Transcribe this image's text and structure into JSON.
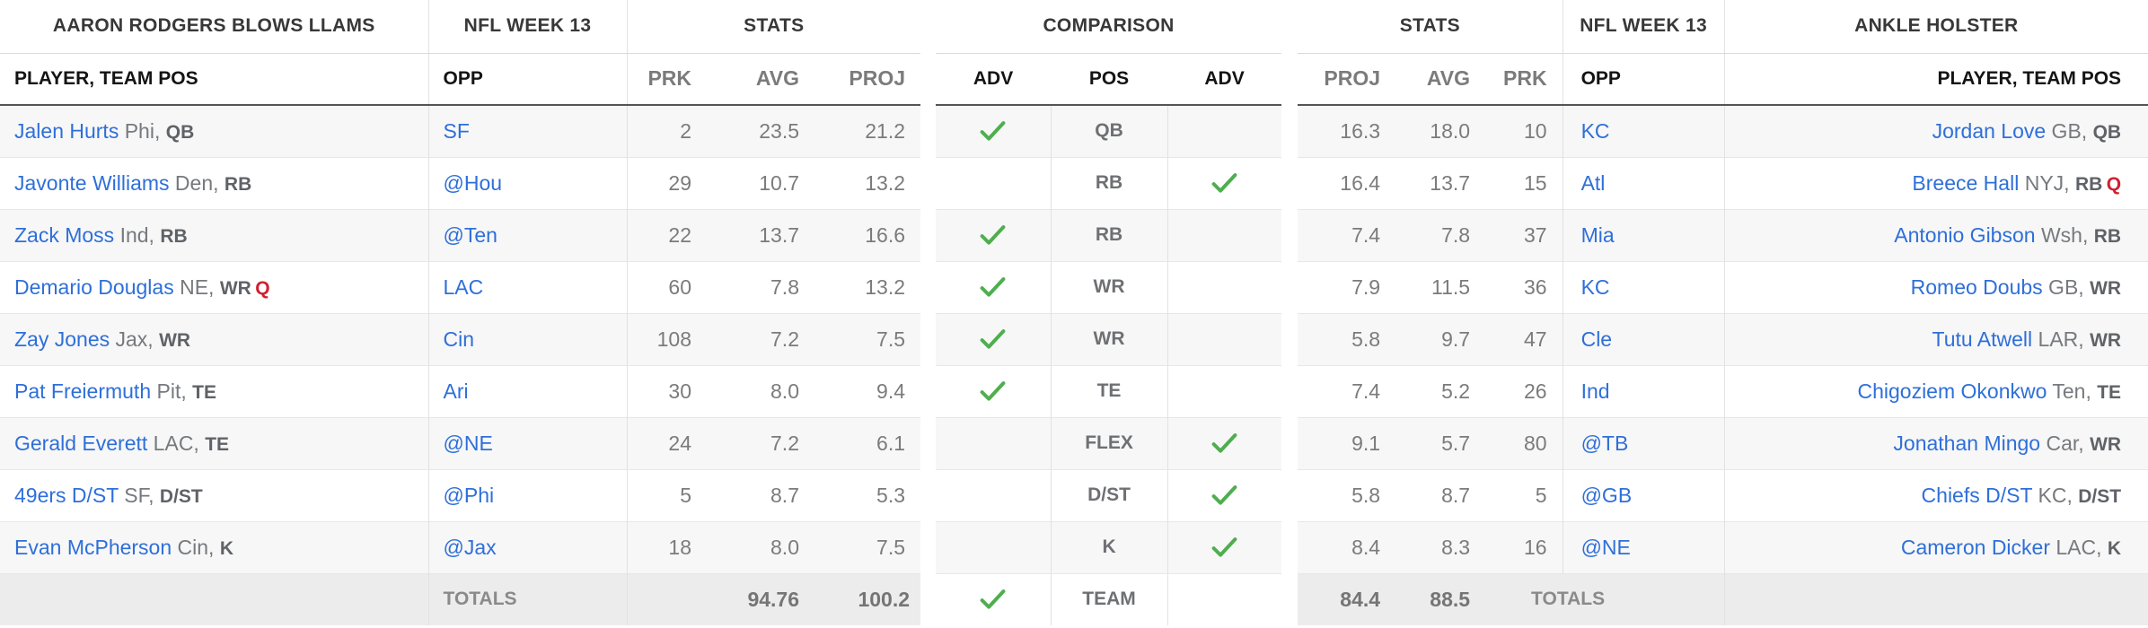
{
  "colors": {
    "link_blue": "#2e6fd9",
    "advantage_green": "#4fae4e",
    "status_red": "#d02030",
    "stripe": "#f7f7f7",
    "totals_bg": "#ececec"
  },
  "left_table": {
    "title": "AARON RODGERS BLOWS LLAMS",
    "week_header": "NFL WEEK 13",
    "stats_header": "STATS",
    "col_headers": {
      "player": "PLAYER, TEAM POS",
      "opp": "OPP",
      "prk": "PRK",
      "avg": "AVG",
      "proj": "PROJ"
    },
    "rows": [
      {
        "name": "Jalen Hurts",
        "team": "Phi",
        "pos": "QB",
        "status": "",
        "opp": "SF",
        "prk": "2",
        "avg": "23.5",
        "proj": "21.2"
      },
      {
        "name": "Javonte Williams",
        "team": "Den",
        "pos": "RB",
        "status": "",
        "opp": "@Hou",
        "prk": "29",
        "avg": "10.7",
        "proj": "13.2"
      },
      {
        "name": "Zack Moss",
        "team": "Ind",
        "pos": "RB",
        "status": "",
        "opp": "@Ten",
        "prk": "22",
        "avg": "13.7",
        "proj": "16.6"
      },
      {
        "name": "Demario Douglas",
        "team": "NE",
        "pos": "WR",
        "status": "Q",
        "opp": "LAC",
        "prk": "60",
        "avg": "7.8",
        "proj": "13.2"
      },
      {
        "name": "Zay Jones",
        "team": "Jax",
        "pos": "WR",
        "status": "",
        "opp": "Cin",
        "prk": "108",
        "avg": "7.2",
        "proj": "7.5"
      },
      {
        "name": "Pat Freiermuth",
        "team": "Pit",
        "pos": "TE",
        "status": "",
        "opp": "Ari",
        "prk": "30",
        "avg": "8.0",
        "proj": "9.4"
      },
      {
        "name": "Gerald Everett",
        "team": "LAC",
        "pos": "TE",
        "status": "",
        "opp": "@NE",
        "prk": "24",
        "avg": "7.2",
        "proj": "6.1"
      },
      {
        "name": "49ers D/ST",
        "team": "SF",
        "pos": "D/ST",
        "status": "",
        "opp": "@Phi",
        "prk": "5",
        "avg": "8.7",
        "proj": "5.3"
      },
      {
        "name": "Evan McPherson",
        "team": "Cin",
        "pos": "K",
        "status": "",
        "opp": "@Jax",
        "prk": "18",
        "avg": "8.0",
        "proj": "7.5"
      }
    ],
    "totals": {
      "label": "TOTALS",
      "avg": "94.76",
      "proj": "100.2"
    }
  },
  "comparison": {
    "header": "COMPARISON",
    "col_headers": {
      "adv_left": "ADV",
      "pos": "POS",
      "adv_right": "ADV"
    },
    "rows": [
      {
        "pos": "QB",
        "advantage": "left"
      },
      {
        "pos": "RB",
        "advantage": "right"
      },
      {
        "pos": "RB",
        "advantage": "left"
      },
      {
        "pos": "WR",
        "advantage": "left"
      },
      {
        "pos": "WR",
        "advantage": "left"
      },
      {
        "pos": "TE",
        "advantage": "left"
      },
      {
        "pos": "FLEX",
        "advantage": "right"
      },
      {
        "pos": "D/ST",
        "advantage": "right"
      },
      {
        "pos": "K",
        "advantage": "right"
      },
      {
        "pos": "TEAM",
        "advantage": "left"
      }
    ]
  },
  "right_table": {
    "stats_header": "STATS",
    "week_header": "NFL WEEK 13",
    "title": "ANKLE HOLSTER",
    "col_headers": {
      "proj": "PROJ",
      "avg": "AVG",
      "prk": "PRK",
      "opp": "OPP",
      "player": "PLAYER, TEAM POS"
    },
    "rows": [
      {
        "proj": "16.3",
        "avg": "18.0",
        "prk": "10",
        "opp": "KC",
        "name": "Jordan Love",
        "team": "GB",
        "pos": "QB",
        "status": ""
      },
      {
        "proj": "16.4",
        "avg": "13.7",
        "prk": "15",
        "opp": "Atl",
        "name": "Breece Hall",
        "team": "NYJ",
        "pos": "RB",
        "status": "Q"
      },
      {
        "proj": "7.4",
        "avg": "7.8",
        "prk": "37",
        "opp": "Mia",
        "name": "Antonio Gibson",
        "team": "Wsh",
        "pos": "RB",
        "status": ""
      },
      {
        "proj": "7.9",
        "avg": "11.5",
        "prk": "36",
        "opp": "KC",
        "name": "Romeo Doubs",
        "team": "GB",
        "pos": "WR",
        "status": ""
      },
      {
        "proj": "5.8",
        "avg": "9.7",
        "prk": "47",
        "opp": "Cle",
        "name": "Tutu Atwell",
        "team": "LAR",
        "pos": "WR",
        "status": ""
      },
      {
        "proj": "7.4",
        "avg": "5.2",
        "prk": "26",
        "opp": "Ind",
        "name": "Chigoziem Okonkwo",
        "team": "Ten",
        "pos": "TE",
        "status": ""
      },
      {
        "proj": "9.1",
        "avg": "5.7",
        "prk": "80",
        "opp": "@TB",
        "name": "Jonathan Mingo",
        "team": "Car",
        "pos": "WR",
        "status": ""
      },
      {
        "proj": "5.8",
        "avg": "8.7",
        "prk": "5",
        "opp": "@GB",
        "name": "Chiefs D/ST",
        "team": "KC",
        "pos": "D/ST",
        "status": ""
      },
      {
        "proj": "8.4",
        "avg": "8.3",
        "prk": "16",
        "opp": "@NE",
        "name": "Cameron Dicker",
        "team": "LAC",
        "pos": "K",
        "status": ""
      }
    ],
    "totals": {
      "proj": "84.4",
      "avg": "88.5",
      "label": "TOTALS"
    }
  }
}
